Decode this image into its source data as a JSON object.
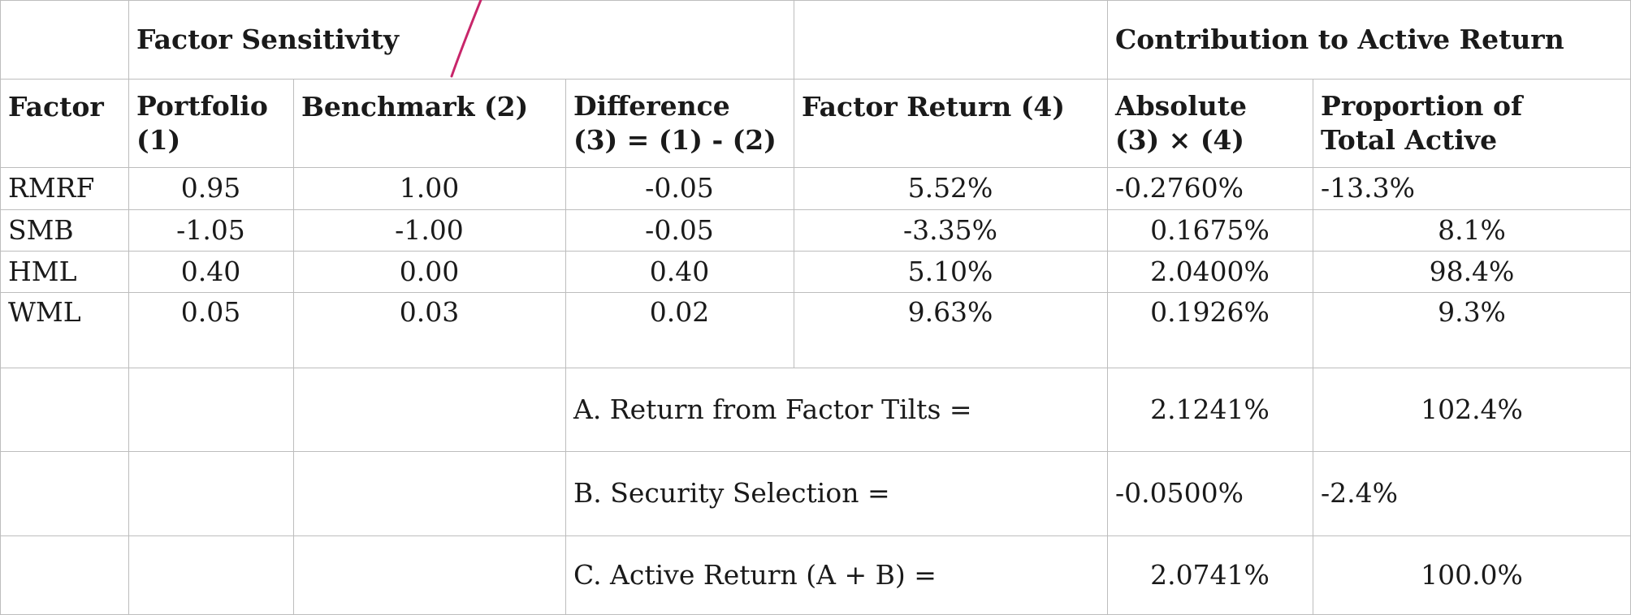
{
  "header": {
    "group_factor_sensitivity": "Factor Sensitivity",
    "group_contribution": "Contribution to Active Return",
    "col_factor": "Factor",
    "col_portfolio_line1": "Portfolio",
    "col_portfolio_line2": "(1)",
    "col_benchmark": "Benchmark (2)",
    "col_difference_line1": "Difference",
    "col_difference_line2": "(3) = (1) - (2)",
    "col_factor_return": "Factor Return (4)",
    "col_absolute_line1": "Absolute",
    "col_absolute_line2": "(3) × (4)",
    "col_proportion_line1": "Proportion of",
    "col_proportion_line2": "Total Active"
  },
  "rows": [
    {
      "factor": "RMRF",
      "portfolio": "0.95",
      "benchmark": "1.00",
      "difference": "-0.05",
      "factor_return": "5.52%",
      "absolute": "-0.2760%",
      "proportion": "-13.3%"
    },
    {
      "factor": "SMB",
      "portfolio": "-1.05",
      "benchmark": "-1.00",
      "difference": "-0.05",
      "factor_return": "-3.35%",
      "absolute": "0.1675%",
      "proportion": "8.1%"
    },
    {
      "factor": "HML",
      "portfolio": "0.40",
      "benchmark": "0.00",
      "difference": "0.40",
      "factor_return": "5.10%",
      "absolute": "2.0400%",
      "proportion": "98.4%"
    },
    {
      "factor": "WML",
      "portfolio": "0.05",
      "benchmark": "0.03",
      "difference": "0.02",
      "factor_return": "9.63%",
      "absolute": "0.1926%",
      "proportion": "9.3%"
    }
  ],
  "summary": [
    {
      "label": "A. Return from Factor Tilts =",
      "absolute": "2.1241%",
      "proportion": "102.4%"
    },
    {
      "label": "B. Security Selection =",
      "absolute": "-0.0500%",
      "proportion": "-2.4%"
    },
    {
      "label": "C. Active Return (A + B) =",
      "absolute": "2.0741%",
      "proportion": "100.0%"
    }
  ],
  "colors": {
    "grid": "#bdbdbd",
    "pen_mark": "#c8266a",
    "text": "#1a1a1a"
  }
}
